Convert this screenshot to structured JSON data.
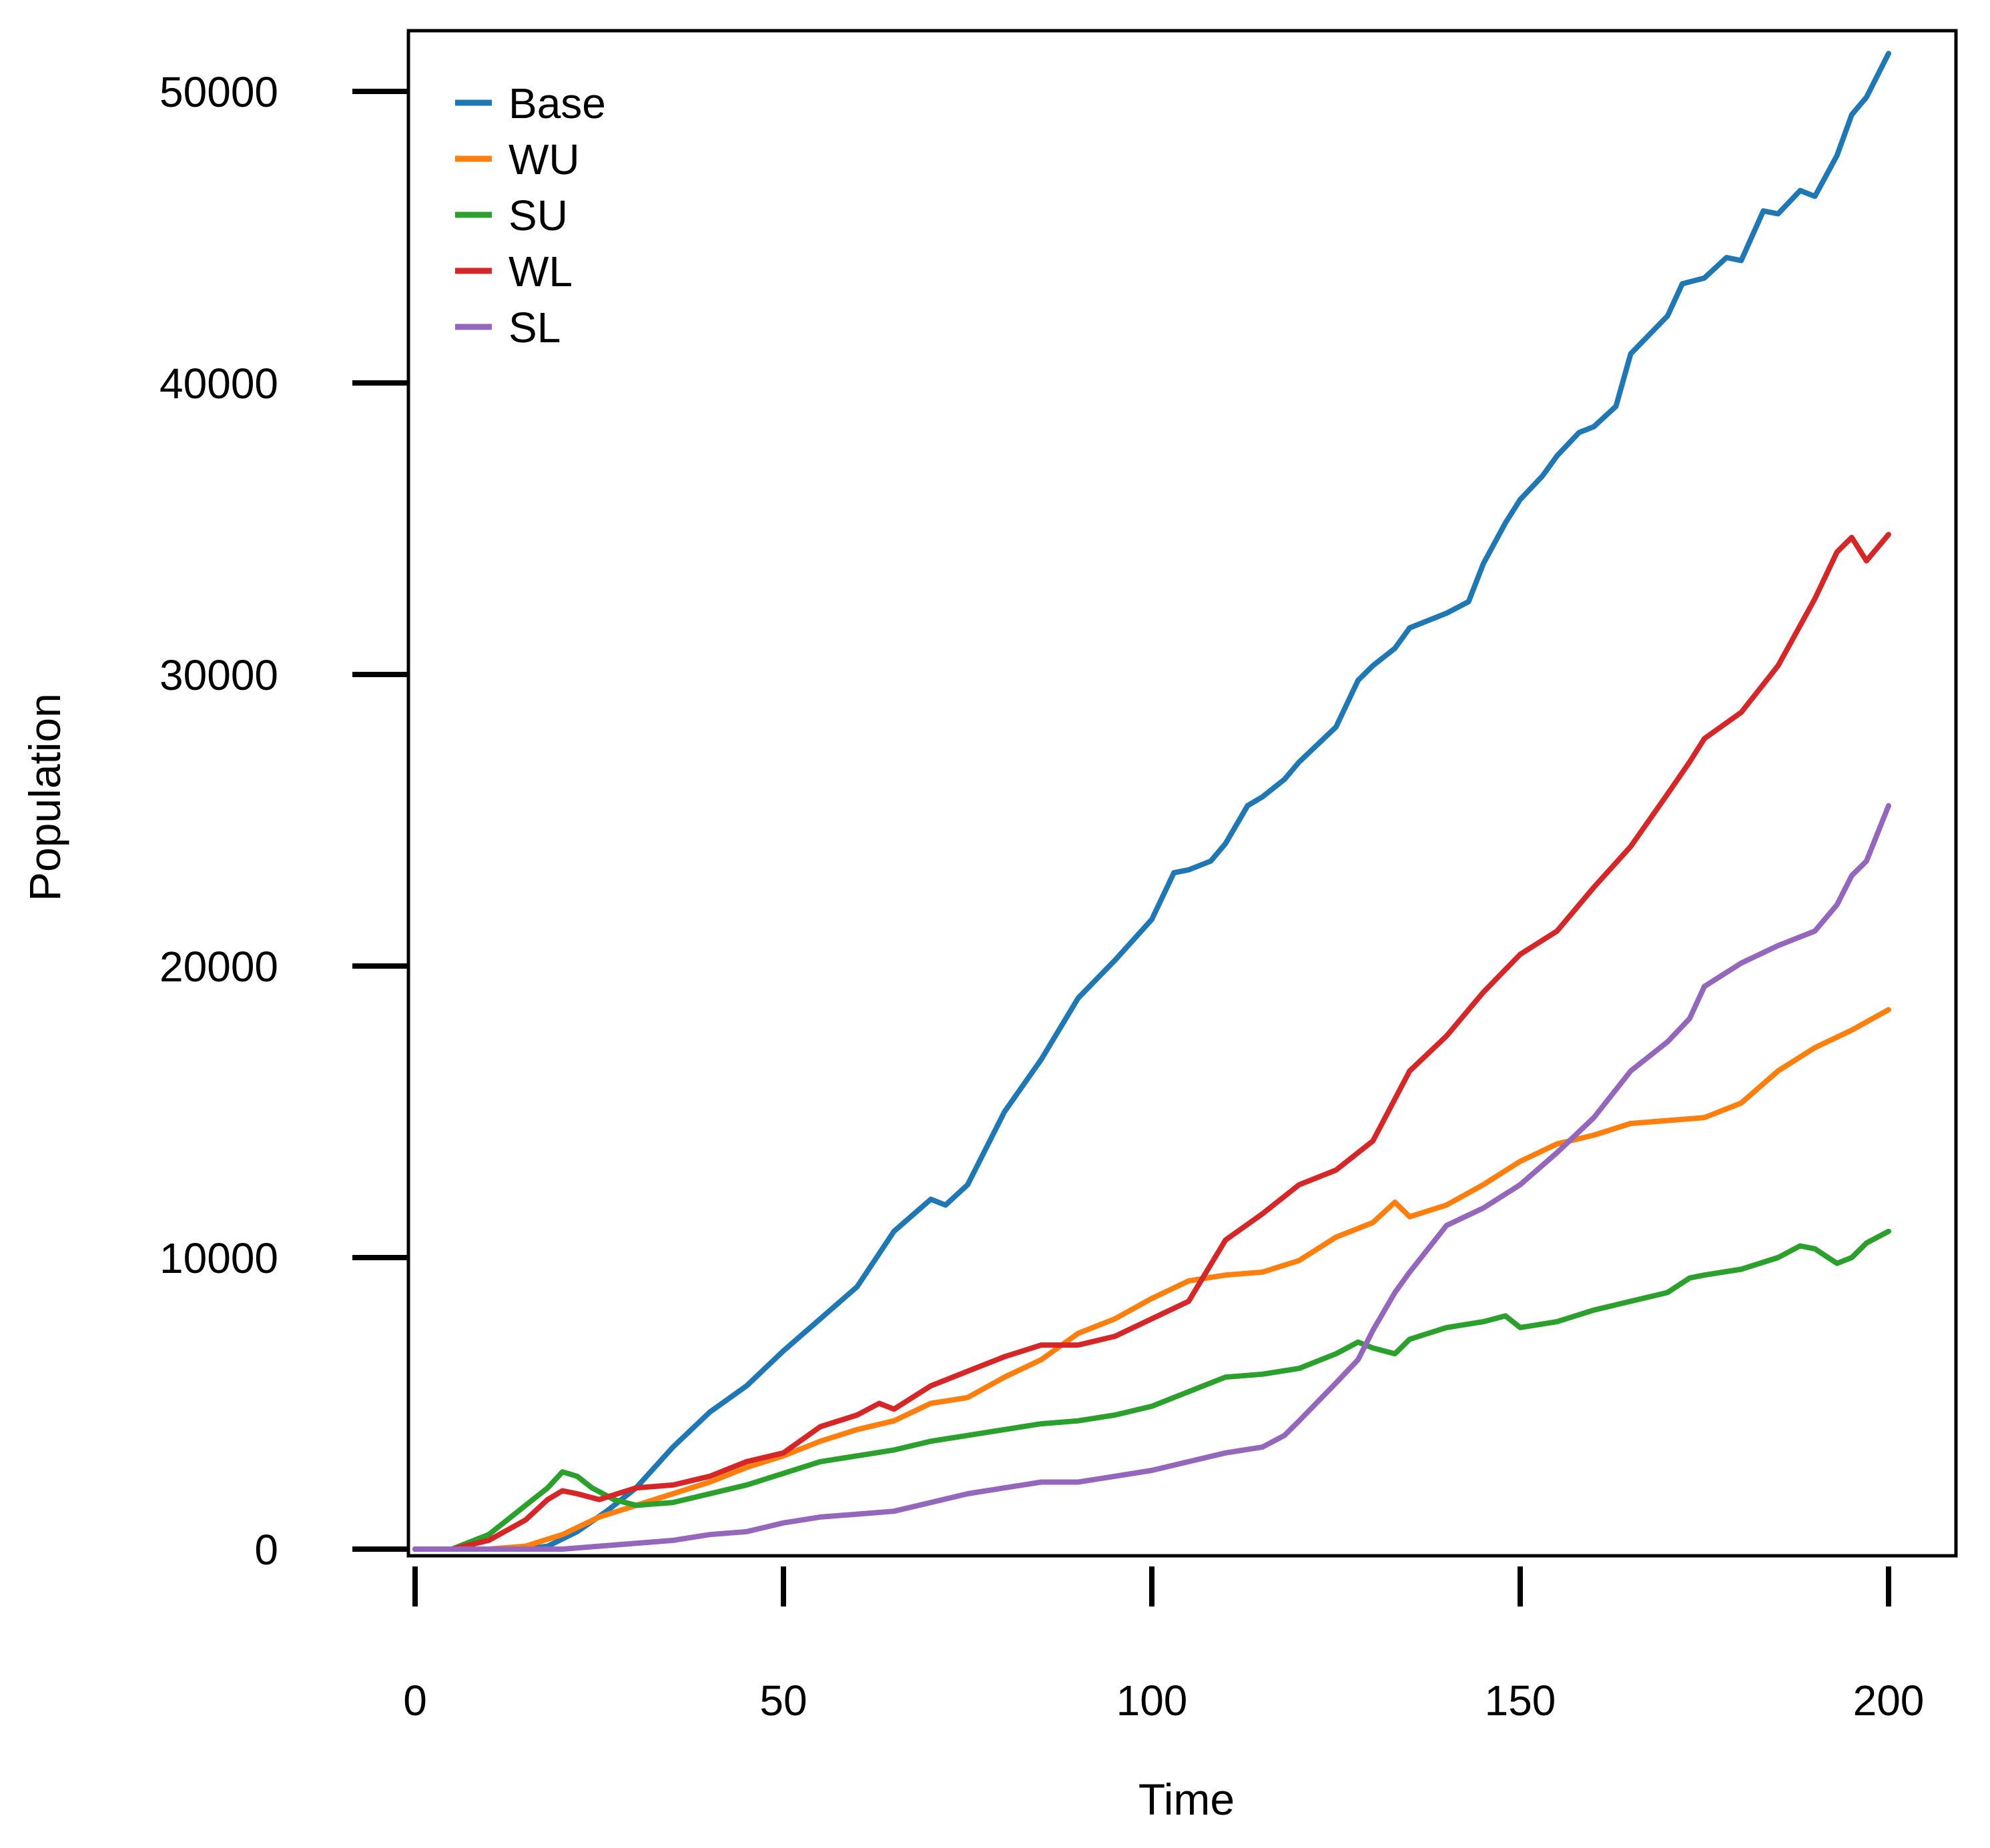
{
  "chart_data": {
    "type": "line",
    "title": "",
    "xlabel": "Time",
    "ylabel": "Population",
    "xlim": [
      0,
      200
    ],
    "ylim": [
      0,
      52000
    ],
    "x_ticks": [
      0,
      50,
      100,
      150,
      200
    ],
    "y_ticks": [
      0,
      10000,
      20000,
      30000,
      40000,
      50000
    ],
    "grid": false,
    "legend_position": "top-left",
    "series": [
      {
        "name": "Base",
        "color": "#1f77b4",
        "x": [
          0,
          5,
          10,
          15,
          18,
          22,
          26,
          30,
          35,
          40,
          45,
          50,
          55,
          60,
          65,
          70,
          72,
          75,
          80,
          85,
          90,
          95,
          100,
          103,
          105,
          108,
          110,
          113,
          115,
          118,
          120,
          125,
          128,
          130,
          133,
          135,
          140,
          143,
          145,
          148,
          150,
          153,
          155,
          158,
          160,
          163,
          165,
          170,
          172,
          175,
          178,
          180,
          183,
          185,
          188,
          190,
          193,
          195,
          197,
          200
        ],
        "y": [
          0,
          0,
          0,
          0,
          100,
          600,
          1300,
          2100,
          3500,
          4700,
          5600,
          6800,
          7900,
          9000,
          10900,
          12000,
          11800,
          12500,
          15000,
          16800,
          18900,
          20200,
          21600,
          23200,
          23300,
          23600,
          24200,
          25500,
          25800,
          26400,
          27000,
          28200,
          29800,
          30300,
          30900,
          31600,
          32100,
          32500,
          33800,
          35200,
          36000,
          36800,
          37500,
          38300,
          38500,
          39200,
          41000,
          42300,
          43400,
          43600,
          44300,
          44200,
          45900,
          45800,
          46600,
          46400,
          47800,
          49200,
          49800,
          51300
        ]
      },
      {
        "name": "WU",
        "color": "#ff7f0e",
        "x": [
          0,
          10,
          15,
          20,
          25,
          30,
          35,
          40,
          45,
          50,
          55,
          60,
          65,
          70,
          75,
          80,
          85,
          90,
          95,
          100,
          105,
          110,
          115,
          120,
          125,
          130,
          133,
          135,
          140,
          145,
          150,
          155,
          160,
          165,
          170,
          175,
          180,
          185,
          190,
          195,
          200
        ],
        "y": [
          0,
          0,
          100,
          500,
          1100,
          1500,
          1900,
          2300,
          2800,
          3200,
          3700,
          4100,
          4400,
          5000,
          5200,
          5900,
          6500,
          7400,
          7900,
          8600,
          9200,
          9400,
          9500,
          9900,
          10700,
          11200,
          11900,
          11400,
          11800,
          12500,
          13300,
          13900,
          14200,
          14600,
          14700,
          14800,
          15300,
          16400,
          17200,
          17800,
          18500
        ]
      },
      {
        "name": "SU",
        "color": "#2ca02c",
        "x": [
          0,
          5,
          10,
          15,
          18,
          20,
          22,
          24,
          27,
          30,
          35,
          40,
          45,
          50,
          55,
          60,
          65,
          70,
          75,
          80,
          85,
          90,
          95,
          100,
          105,
          110,
          115,
          120,
          125,
          128,
          130,
          133,
          135,
          140,
          145,
          148,
          150,
          155,
          160,
          165,
          170,
          173,
          175,
          180,
          185,
          188,
          190,
          193,
          195,
          197,
          200
        ],
        "y": [
          0,
          0,
          500,
          1500,
          2100,
          2650,
          2500,
          2100,
          1700,
          1500,
          1600,
          1900,
          2200,
          2600,
          3000,
          3200,
          3400,
          3700,
          3900,
          4100,
          4300,
          4400,
          4600,
          4900,
          5400,
          5900,
          6000,
          6200,
          6700,
          7100,
          6900,
          6700,
          7200,
          7600,
          7800,
          8000,
          7600,
          7800,
          8200,
          8500,
          8800,
          9300,
          9400,
          9600,
          10000,
          10400,
          10300,
          9800,
          10000,
          10500,
          10900
        ]
      },
      {
        "name": "WL",
        "color": "#d62728",
        "x": [
          0,
          5,
          10,
          15,
          18,
          20,
          22,
          25,
          30,
          35,
          40,
          45,
          50,
          55,
          60,
          63,
          65,
          70,
          75,
          80,
          85,
          90,
          95,
          100,
          105,
          110,
          115,
          120,
          125,
          130,
          135,
          140,
          145,
          150,
          155,
          160,
          165,
          170,
          173,
          175,
          180,
          185,
          190,
          193,
          195,
          197,
          200
        ],
        "y": [
          0,
          0,
          300,
          1000,
          1700,
          2000,
          1900,
          1700,
          2100,
          2200,
          2500,
          3000,
          3300,
          4200,
          4600,
          5000,
          4800,
          5600,
          6100,
          6600,
          7000,
          7000,
          7300,
          7900,
          8500,
          10600,
          11500,
          12500,
          13000,
          14000,
          16400,
          17600,
          19100,
          20400,
          21200,
          22700,
          24100,
          25900,
          27000,
          27800,
          28700,
          30300,
          32600,
          34200,
          34700,
          33900,
          34800
        ]
      },
      {
        "name": "SL",
        "color": "#9467bd",
        "x": [
          0,
          10,
          15,
          20,
          25,
          30,
          35,
          40,
          45,
          50,
          55,
          60,
          65,
          70,
          75,
          80,
          85,
          90,
          95,
          100,
          105,
          110,
          115,
          118,
          120,
          125,
          128,
          130,
          133,
          135,
          140,
          145,
          150,
          155,
          160,
          165,
          170,
          173,
          175,
          180,
          185,
          190,
          193,
          195,
          197,
          200
        ],
        "y": [
          0,
          0,
          0,
          0,
          100,
          200,
          300,
          500,
          600,
          900,
          1100,
          1200,
          1300,
          1600,
          1900,
          2100,
          2300,
          2300,
          2500,
          2700,
          3000,
          3300,
          3500,
          3900,
          4400,
          5700,
          6500,
          7500,
          8800,
          9500,
          11100,
          11700,
          12500,
          13600,
          14800,
          16400,
          17400,
          18200,
          19300,
          20100,
          20700,
          21200,
          22100,
          23100,
          23600,
          25500
        ]
      }
    ]
  }
}
